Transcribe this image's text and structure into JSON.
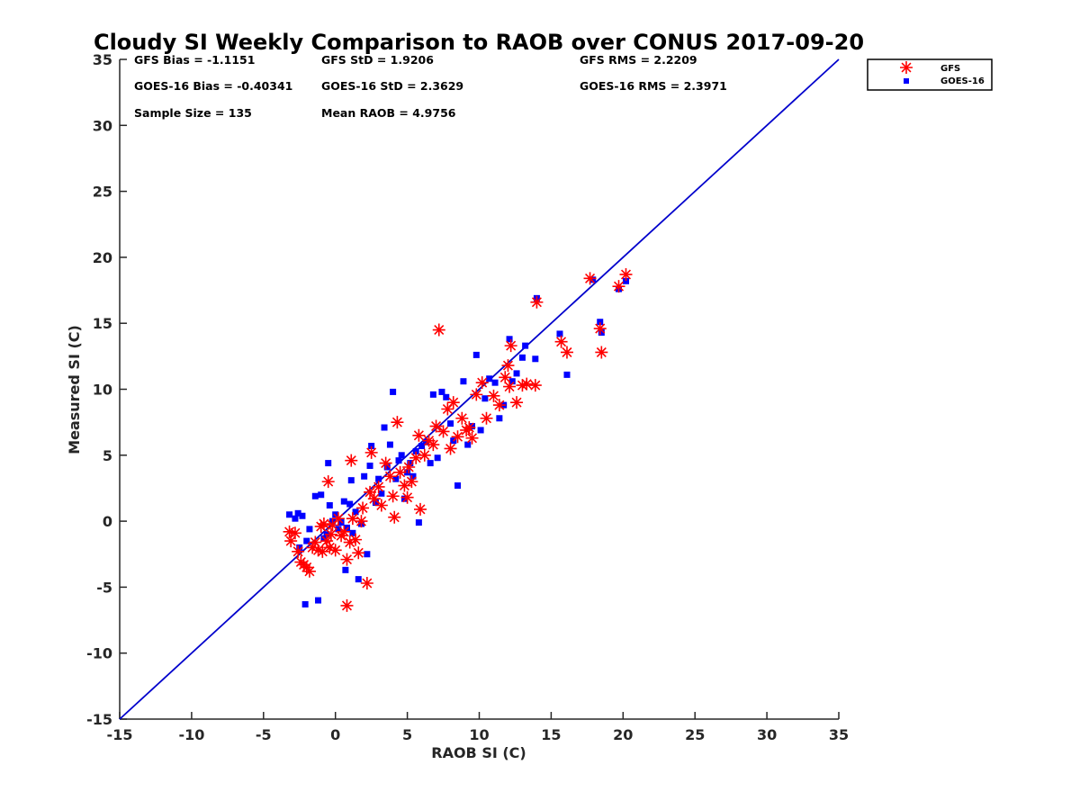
{
  "chart_data": {
    "type": "scatter",
    "title": "Cloudy SI Weekly Comparison to RAOB over CONUS 2017-09-20",
    "xlabel": "RAOB SI (C)",
    "ylabel": "Measured SI (C)",
    "xlim": [
      -15,
      35
    ],
    "ylim": [
      -15,
      35
    ],
    "xticks": [
      -15,
      -10,
      -5,
      0,
      5,
      10,
      15,
      20,
      25,
      30,
      35
    ],
    "yticks": [
      -15,
      -10,
      -5,
      0,
      5,
      10,
      15,
      20,
      25,
      30,
      35
    ],
    "grid": false,
    "legend_position": "top-right (outside plot)",
    "stats": [
      "GFS Bias = -1.1151",
      "GFS StD = 1.9206",
      "GFS RMS = 2.2209",
      "GOES-16 Bias = -0.40341",
      "GOES-16 StD = 2.3629",
      "GOES-16 RMS = 2.3971",
      "Sample Size = 135",
      "Mean RAOB = 4.9756"
    ],
    "reference_line": {
      "x": [
        -15,
        35
      ],
      "y": [
        -15,
        35
      ],
      "color": "#0000cc"
    },
    "series": [
      {
        "name": "GFS",
        "marker": "asterisk",
        "color": "#ff0000",
        "points": [
          [
            -3.2,
            -0.8
          ],
          [
            -3.1,
            -1.5
          ],
          [
            -2.8,
            -0.9
          ],
          [
            -2.6,
            -2.3
          ],
          [
            -2.4,
            -3.1
          ],
          [
            -2.2,
            -3.3
          ],
          [
            -2.0,
            -3.5
          ],
          [
            -1.8,
            -3.8
          ],
          [
            -1.6,
            -2.0
          ],
          [
            -1.4,
            -1.6
          ],
          [
            -1.2,
            -2.2
          ],
          [
            -1.0,
            -0.4
          ],
          [
            -0.9,
            -2.3
          ],
          [
            -0.8,
            -0.2
          ],
          [
            -0.6,
            -1.5
          ],
          [
            -0.5,
            3.0
          ],
          [
            -0.4,
            -2.0
          ],
          [
            -0.3,
            -1.0
          ],
          [
            -0.2,
            -0.3
          ],
          [
            0.0,
            -2.2
          ],
          [
            0.2,
            0.2
          ],
          [
            0.4,
            -1.1
          ],
          [
            0.6,
            -0.8
          ],
          [
            0.8,
            -2.9
          ],
          [
            0.8,
            -6.4
          ],
          [
            1.0,
            -1.6
          ],
          [
            1.1,
            4.6
          ],
          [
            1.2,
            0.2
          ],
          [
            1.4,
            -1.4
          ],
          [
            1.6,
            -2.4
          ],
          [
            1.8,
            0.0
          ],
          [
            1.9,
            1.0
          ],
          [
            2.2,
            -4.7
          ],
          [
            2.4,
            2.2
          ],
          [
            2.5,
            5.2
          ],
          [
            2.7,
            1.7
          ],
          [
            3.0,
            2.6
          ],
          [
            3.2,
            1.2
          ],
          [
            3.5,
            4.4
          ],
          [
            3.8,
            3.4
          ],
          [
            4.0,
            1.9
          ],
          [
            4.1,
            0.3
          ],
          [
            4.3,
            7.5
          ],
          [
            4.5,
            3.7
          ],
          [
            4.8,
            2.7
          ],
          [
            5.0,
            1.8
          ],
          [
            5.1,
            4.1
          ],
          [
            5.3,
            3.0
          ],
          [
            5.6,
            4.8
          ],
          [
            5.8,
            6.5
          ],
          [
            5.9,
            0.9
          ],
          [
            6.2,
            5.0
          ],
          [
            6.5,
            6.1
          ],
          [
            6.8,
            5.8
          ],
          [
            7.0,
            7.2
          ],
          [
            7.2,
            14.5
          ],
          [
            7.5,
            6.8
          ],
          [
            7.8,
            8.5
          ],
          [
            8.0,
            5.5
          ],
          [
            8.2,
            9.0
          ],
          [
            8.5,
            6.4
          ],
          [
            8.8,
            7.8
          ],
          [
            9.1,
            6.9
          ],
          [
            9.3,
            7.1
          ],
          [
            9.5,
            6.3
          ],
          [
            9.8,
            9.6
          ],
          [
            10.2,
            10.5
          ],
          [
            10.5,
            7.8
          ],
          [
            11.0,
            9.5
          ],
          [
            11.4,
            8.8
          ],
          [
            11.8,
            10.9
          ],
          [
            12.0,
            11.8
          ],
          [
            12.1,
            10.2
          ],
          [
            12.2,
            13.3
          ],
          [
            12.6,
            9.0
          ],
          [
            13.0,
            10.3
          ],
          [
            13.3,
            10.4
          ],
          [
            13.9,
            10.3
          ],
          [
            14.0,
            16.6
          ],
          [
            15.7,
            13.6
          ],
          [
            16.1,
            12.8
          ],
          [
            17.7,
            18.4
          ],
          [
            18.4,
            14.6
          ],
          [
            18.5,
            12.8
          ],
          [
            19.7,
            17.8
          ],
          [
            20.2,
            18.7
          ]
        ]
      },
      {
        "name": "GOES-16",
        "marker": "square",
        "color": "#0000ff",
        "points": [
          [
            -3.2,
            0.5
          ],
          [
            -2.8,
            0.2
          ],
          [
            -2.6,
            0.6
          ],
          [
            -2.3,
            0.4
          ],
          [
            -2.1,
            -6.3
          ],
          [
            -2.5,
            -2.0
          ],
          [
            -2.0,
            -1.5
          ],
          [
            -1.8,
            -0.6
          ],
          [
            -1.4,
            1.9
          ],
          [
            -1.2,
            -6.0
          ],
          [
            -1.0,
            2.0
          ],
          [
            -0.8,
            -1.3
          ],
          [
            -0.6,
            -1.0
          ],
          [
            -0.5,
            4.4
          ],
          [
            -0.4,
            1.2
          ],
          [
            -0.2,
            0.0
          ],
          [
            0.0,
            0.5
          ],
          [
            0.2,
            -0.6
          ],
          [
            0.4,
            -0.1
          ],
          [
            0.6,
            1.5
          ],
          [
            0.7,
            -3.7
          ],
          [
            0.8,
            -0.5
          ],
          [
            1.0,
            1.3
          ],
          [
            1.1,
            3.1
          ],
          [
            1.2,
            -0.9
          ],
          [
            1.4,
            0.7
          ],
          [
            1.6,
            -4.4
          ],
          [
            1.8,
            -0.2
          ],
          [
            2.0,
            3.4
          ],
          [
            2.2,
            -2.5
          ],
          [
            2.4,
            4.2
          ],
          [
            2.5,
            5.7
          ],
          [
            2.8,
            1.4
          ],
          [
            3.0,
            3.2
          ],
          [
            3.2,
            2.1
          ],
          [
            3.4,
            7.1
          ],
          [
            3.6,
            4.1
          ],
          [
            3.8,
            5.8
          ],
          [
            4.0,
            9.8
          ],
          [
            4.2,
            3.2
          ],
          [
            4.4,
            4.6
          ],
          [
            4.6,
            5.0
          ],
          [
            4.8,
            1.7
          ],
          [
            5.0,
            3.7
          ],
          [
            5.2,
            4.4
          ],
          [
            5.4,
            3.4
          ],
          [
            5.6,
            5.3
          ],
          [
            5.8,
            -0.1
          ],
          [
            6.0,
            5.7
          ],
          [
            6.3,
            6.0
          ],
          [
            6.6,
            4.4
          ],
          [
            6.8,
            9.6
          ],
          [
            7.1,
            4.8
          ],
          [
            7.4,
            9.8
          ],
          [
            7.7,
            9.4
          ],
          [
            8.0,
            7.4
          ],
          [
            8.2,
            6.1
          ],
          [
            8.5,
            2.7
          ],
          [
            8.9,
            10.6
          ],
          [
            9.2,
            5.8
          ],
          [
            9.5,
            7.2
          ],
          [
            9.8,
            12.6
          ],
          [
            10.1,
            6.9
          ],
          [
            10.4,
            9.3
          ],
          [
            10.7,
            10.8
          ],
          [
            11.1,
            10.5
          ],
          [
            11.4,
            7.8
          ],
          [
            11.7,
            8.8
          ],
          [
            12.1,
            13.8
          ],
          [
            12.3,
            10.6
          ],
          [
            12.6,
            11.2
          ],
          [
            13.0,
            12.4
          ],
          [
            13.2,
            13.3
          ],
          [
            13.9,
            12.3
          ],
          [
            14.0,
            16.9
          ],
          [
            15.6,
            14.2
          ],
          [
            16.1,
            11.1
          ],
          [
            17.9,
            18.3
          ],
          [
            18.4,
            15.1
          ],
          [
            18.5,
            14.3
          ],
          [
            19.7,
            17.6
          ],
          [
            20.2,
            18.2
          ]
        ]
      }
    ]
  }
}
